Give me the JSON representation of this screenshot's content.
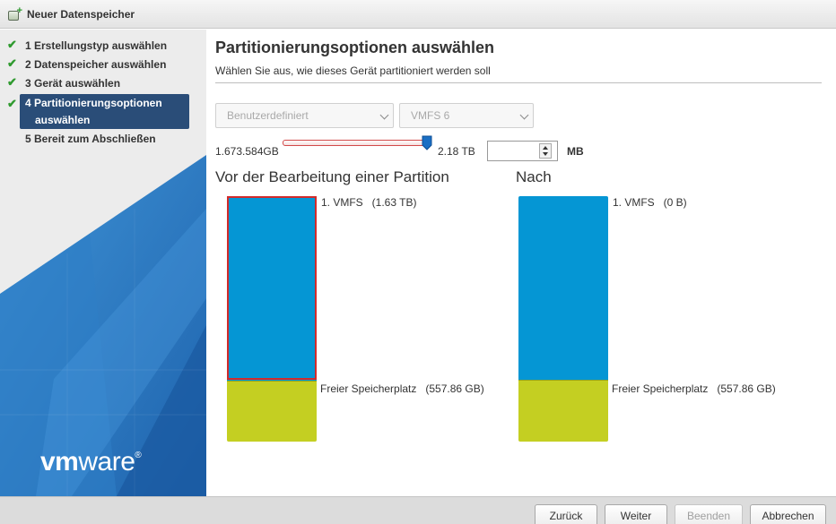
{
  "window": {
    "title": "Neuer Datenspeicher",
    "title_icon": "new-datastore-icon"
  },
  "sidebar": {
    "steps": [
      {
        "label": "1 Erstellungstyp auswählen",
        "done": true
      },
      {
        "label": "2 Datenspeicher auswählen",
        "done": true
      },
      {
        "label": "3 Gerät auswählen",
        "done": true
      },
      {
        "label_line1": "4 Partitionierungsoptionen",
        "label_line2": "auswählen",
        "done": true,
        "active": true
      },
      {
        "label": "5 Bereit zum Abschließen",
        "done": false
      }
    ],
    "logo": {
      "vm": "vm",
      "ware": "ware"
    }
  },
  "main": {
    "title": "Partitionierungsoptionen auswählen",
    "subtitle": "Wählen Sie aus, wie dieses Gerät partitioniert werden soll",
    "partition_config": {
      "selected": "Benutzerdefiniert"
    },
    "fs_version": {
      "selected": "VMFS 6"
    },
    "slider": {
      "min_label": "1.673.584GB",
      "max_label": "2.18 TB",
      "value_fraction": 1.0
    },
    "size_input": {
      "value": "",
      "unit": "MB"
    },
    "before": {
      "title": "Vor der Bearbeitung einer Partition",
      "segments": [
        {
          "label": "1. VMFS   (1.63 TB)",
          "color": "#0596d4",
          "selected": true
        },
        {
          "label": "Freier Speicherplatz   (557.86 GB)",
          "color": "#c4cf22"
        }
      ]
    },
    "after": {
      "title": "Nach",
      "segments": [
        {
          "label": "1. VMFS   (0 B)",
          "color": "#0596d4"
        },
        {
          "label": "Freier Speicherplatz   (557.86 GB)",
          "color": "#c4cf22"
        }
      ]
    }
  },
  "footer": {
    "back": "Zurück",
    "next": "Weiter",
    "finish": "Beenden",
    "cancel": "Abbrechen"
  },
  "colors": {
    "accent": "#2a4d78",
    "vmfs": "#0596d4",
    "free": "#c4cf22",
    "selection": "#d22b2b"
  }
}
